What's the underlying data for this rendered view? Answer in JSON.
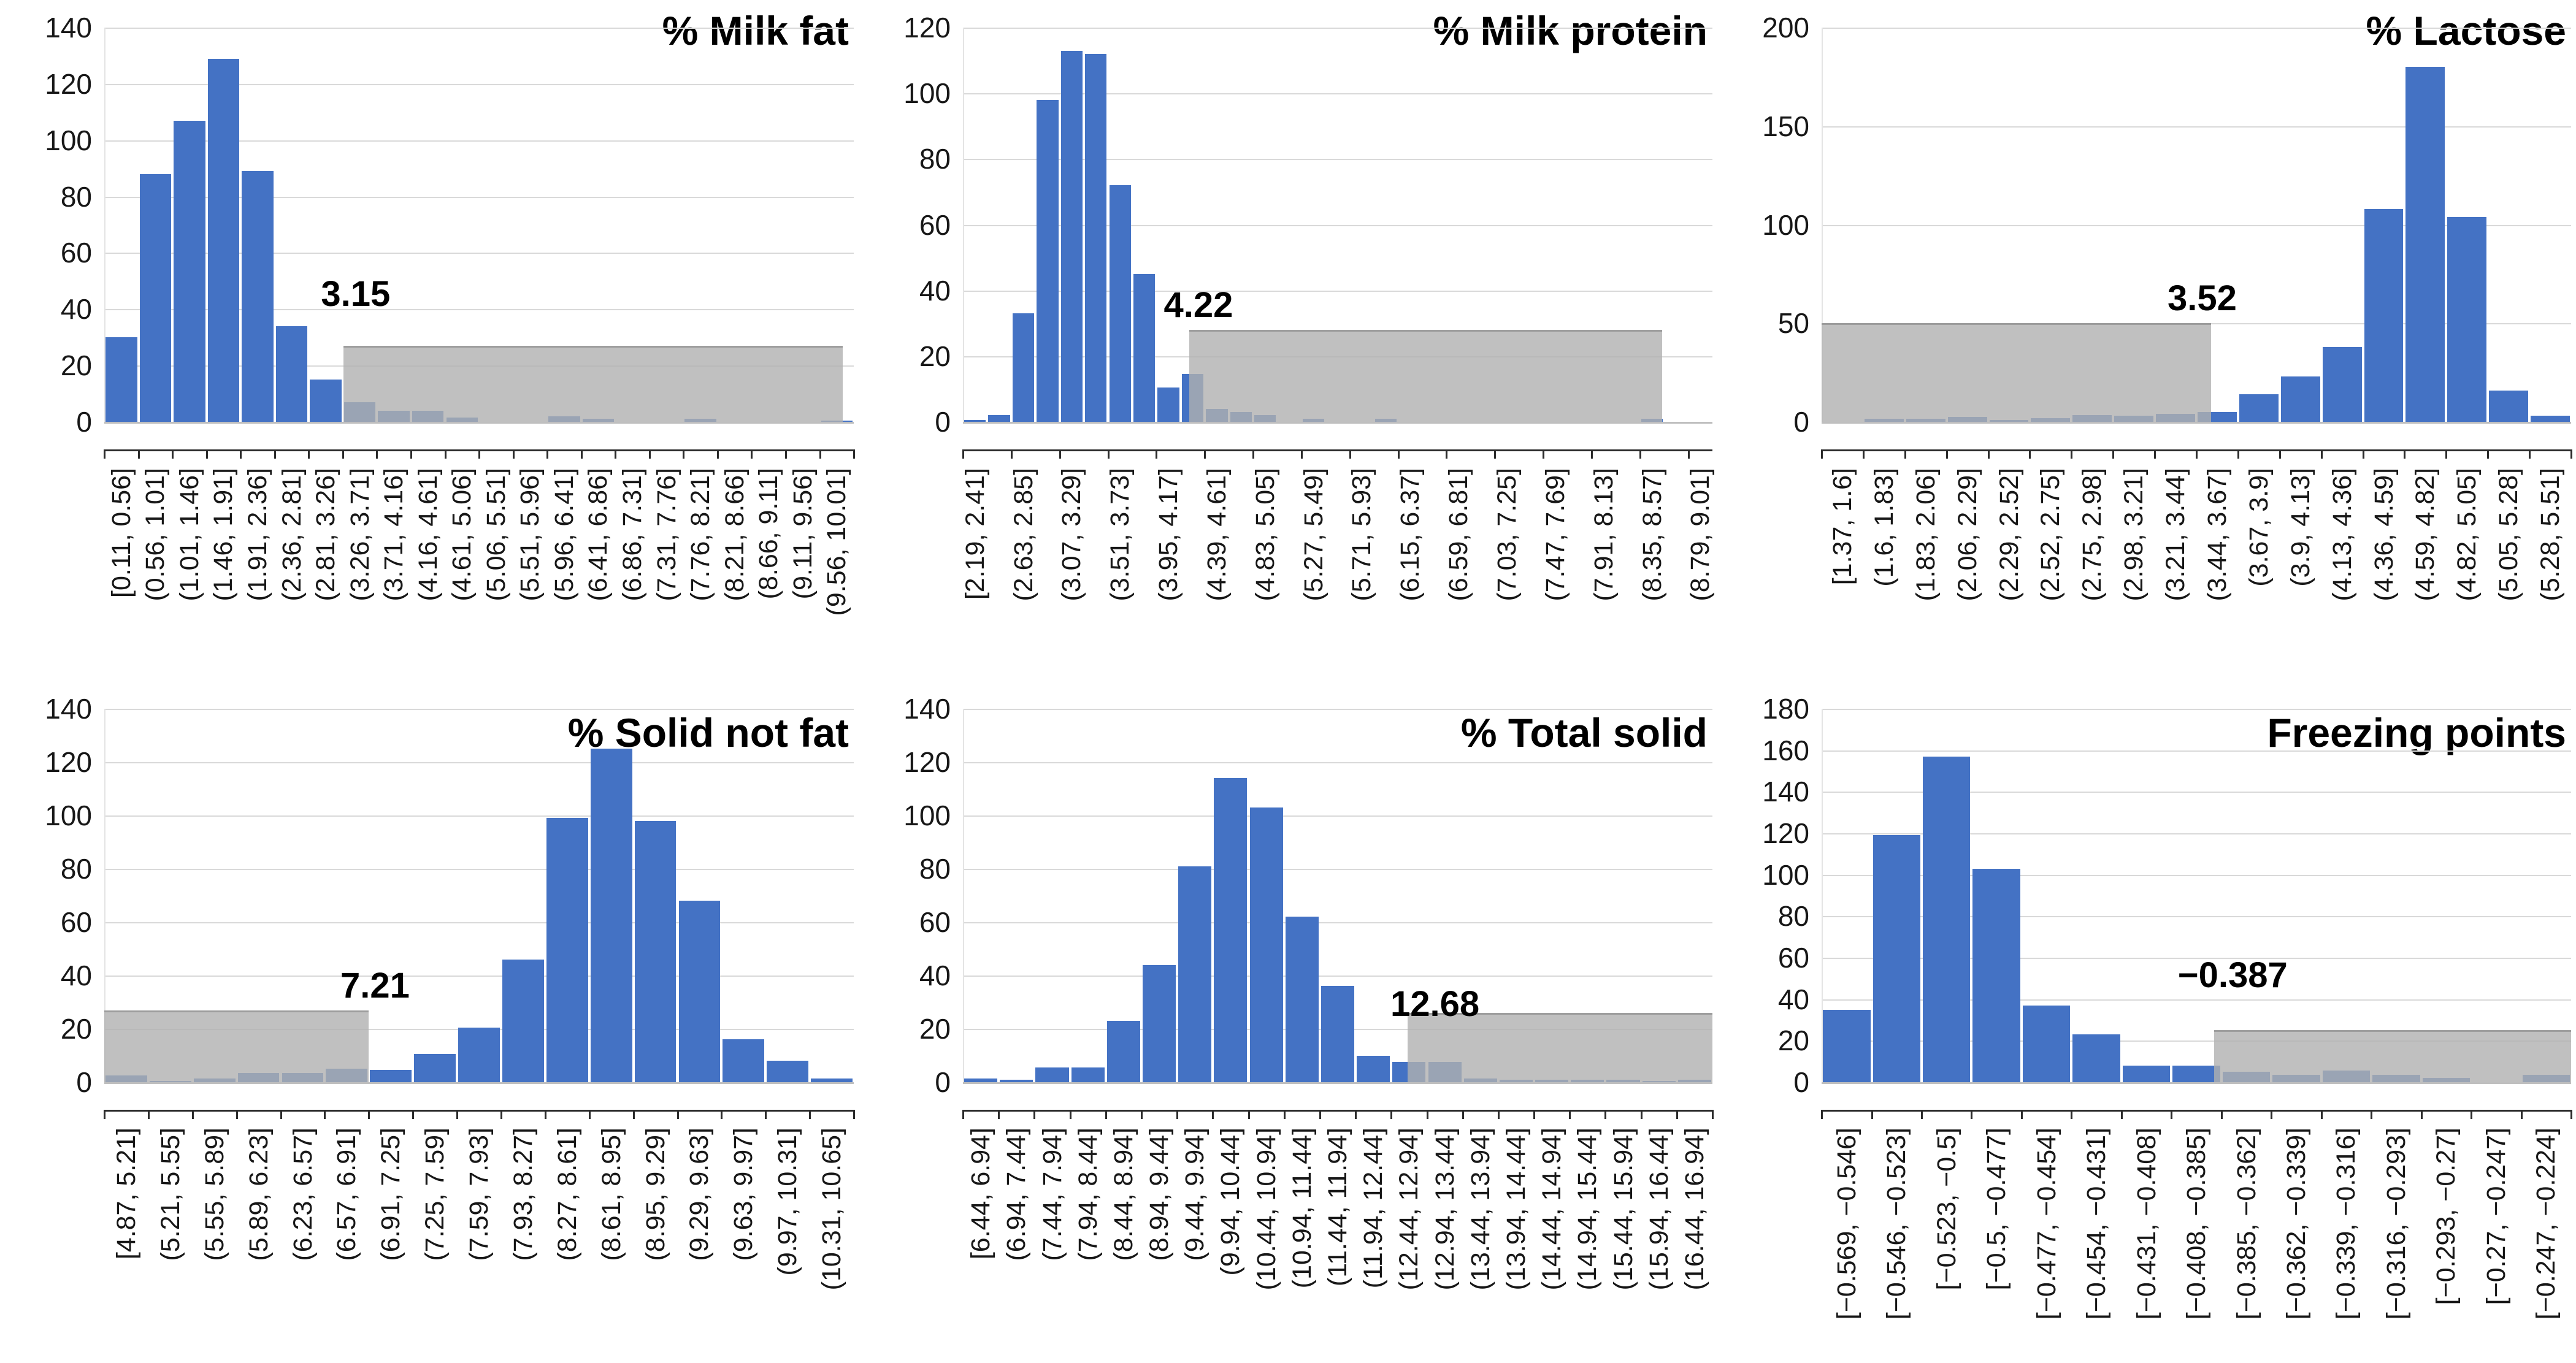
{
  "figure": {
    "description_titles": [
      "% Milk fat",
      "% Milk protein",
      "% Lactose",
      "% Solid not fat",
      "% Total solid",
      "Freezing points"
    ]
  },
  "colors": {
    "bar": "#4472c4",
    "shade": "rgba(176,176,176,0.80)",
    "gridline": "#d9d9d9",
    "axis_line": "#bfbfbf",
    "ruler": "#2b2b2b",
    "tick_text": "#171717",
    "title_text": "#000000"
  },
  "chart_data": [
    {
      "id": "milk-fat",
      "type": "bar",
      "title": "% Milk fat",
      "ylim": [
        0,
        140
      ],
      "yticks": [
        0,
        20,
        40,
        60,
        80,
        100,
        120,
        140
      ],
      "n_bins": 22,
      "tick_every": 1,
      "categories": [
        "[0.11, 0.56]",
        "(0.56, 1.01]",
        "(1.01, 1.46]",
        "(1.46, 1.91]",
        "(1.91, 2.36]",
        "(2.36, 2.81]",
        "(2.81, 3.26]",
        "(3.26, 3.71]",
        "(3.71, 4.16]",
        "(4.16, 4.61]",
        "(4.61, 5.06]",
        "(5.06, 5.51]",
        "(5.51, 5.96]",
        "(5.96, 6.41]",
        "(6.41, 6.86]",
        "(6.86, 7.31]",
        "(7.31, 7.76]",
        "(7.76, 8.21]",
        "(8.21, 8.66]",
        "(8.66, 9.11]",
        "(9.11, 9.56]",
        "(9.56, 10.01]"
      ],
      "label_bins": [
        0,
        1,
        2,
        3,
        4,
        5,
        6,
        7,
        8,
        9,
        10,
        11,
        12,
        13,
        14,
        15,
        16,
        17,
        18,
        19,
        20,
        21
      ],
      "values": [
        30,
        88,
        107,
        129,
        89,
        34,
        15,
        7,
        4,
        4,
        1.5,
        0,
        0,
        2,
        1,
        0,
        0,
        1,
        0,
        0,
        0,
        0.5
      ],
      "shade": {
        "from": 0.319,
        "to": 0.985,
        "height": 27,
        "label": "3.15",
        "threshold": 3.15,
        "label_dx": 20,
        "label_gap": 50
      }
    },
    {
      "id": "milk-protein",
      "type": "bar",
      "title": "% Milk protein",
      "ylim": [
        0,
        120
      ],
      "yticks": [
        0,
        20,
        40,
        60,
        80,
        100,
        120
      ],
      "n_bins": 31,
      "tick_every": 2,
      "categories": [
        "[2.19, 2.41]",
        "(2.63, 2.85]",
        "(3.07, 3.29]",
        "(3.51, 3.73]",
        "(3.95, 4.17]",
        "(4.39, 4.61]",
        "(4.83, 5.05]",
        "(5.27, 5.49]",
        "(5.71, 5.93]",
        "(6.15, 6.37]",
        "(6.59, 6.81]",
        "(7.03, 7.25]",
        "(7.47, 7.69]",
        "(7.91, 8.13]",
        "(8.35, 8.57]",
        "(8.79, 9.01]"
      ],
      "label_bins": [
        0,
        2,
        4,
        6,
        8,
        10,
        12,
        14,
        16,
        18,
        20,
        22,
        24,
        26,
        28,
        30
      ],
      "values": [
        0.5,
        2,
        33,
        98,
        113,
        112,
        72,
        45,
        10.5,
        14.5,
        4,
        3,
        2,
        0,
        1,
        0,
        0,
        1,
        0,
        0,
        0,
        0,
        0,
        0,
        0,
        0,
        0,
        0,
        1,
        0,
        0
      ],
      "shade": {
        "from": 0.302,
        "to": 0.933,
        "height": 28,
        "label": "4.22",
        "threshold": 4.22,
        "label_dx": 15,
        "label_gap": 6
      }
    },
    {
      "id": "lactose",
      "type": "bar",
      "title": "% Lactose",
      "ylim": [
        0,
        200
      ],
      "yticks": [
        0,
        50,
        100,
        150,
        200
      ],
      "n_bins": 18,
      "tick_every": 1,
      "categories": [
        "[1.37, 1.6]",
        "(1.6, 1.83]",
        "(1.83, 2.06]",
        "(2.06, 2.29]",
        "(2.29, 2.52]",
        "(2.52, 2.75]",
        "(2.75, 2.98]",
        "(2.98, 3.21]",
        "(3.21, 3.44]",
        "(3.44, 3.67]",
        "(3.67, 3.9]",
        "(3.9, 4.13]",
        "(4.13, 4.36]",
        "(4.36, 4.59]",
        "(4.59, 4.82]",
        "(4.82, 5.05]",
        "(5.05, 5.28]",
        "(5.28, 5.51]"
      ],
      "label_bins": [
        0,
        1,
        2,
        3,
        4,
        5,
        6,
        7,
        8,
        9,
        10,
        11,
        12,
        13,
        14,
        15,
        16,
        17
      ],
      "values": [
        0,
        1.5,
        1.5,
        2.5,
        1,
        2,
        3.5,
        3,
        4,
        5,
        14,
        23,
        38,
        108,
        180,
        104,
        16,
        3
      ],
      "shade": {
        "from": 0,
        "to": 0.52,
        "height": 50,
        "label": "3.52",
        "threshold": 3.52,
        "label_dx": -15,
        "label_gap": 6
      }
    },
    {
      "id": "solid-not-fat",
      "type": "bar",
      "title": "% Solid not fat",
      "ylim": [
        0,
        140
      ],
      "yticks": [
        0,
        20,
        40,
        60,
        80,
        100,
        120,
        140
      ],
      "n_bins": 17,
      "tick_every": 1,
      "categories": [
        "[4.87, 5.21]",
        "(5.21, 5.55]",
        "(5.55, 5.89]",
        "(5.89, 6.23]",
        "(6.23, 6.57]",
        "(6.57, 6.91]",
        "(6.91, 7.25]",
        "(7.25, 7.59]",
        "(7.59, 7.93]",
        "(7.93, 8.27]",
        "(8.27, 8.61]",
        "(8.61, 8.95]",
        "(8.95, 9.29]",
        "(9.29, 9.63]",
        "(9.63, 9.97]",
        "(9.97, 10.31]",
        "(10.31, 10.65]"
      ],
      "label_bins": [
        0,
        1,
        2,
        3,
        4,
        5,
        6,
        7,
        8,
        9,
        10,
        11,
        12,
        13,
        14,
        15,
        16
      ],
      "values": [
        2.5,
        0.5,
        1.5,
        3.5,
        3.5,
        5,
        4.5,
        10.5,
        20.5,
        46,
        99,
        125,
        98,
        68,
        16,
        8,
        1.5
      ],
      "shade": {
        "from": 0,
        "to": 0.353,
        "height": 27,
        "label": "7.21",
        "threshold": 7.21,
        "label_dx": 10,
        "label_gap": 6
      }
    },
    {
      "id": "total-solid",
      "type": "bar",
      "title": "% Total solid",
      "ylim": [
        0,
        140
      ],
      "yticks": [
        0,
        20,
        40,
        60,
        80,
        100,
        120,
        140
      ],
      "n_bins": 21,
      "tick_every": 1,
      "categories": [
        "[6.44, 6.94]",
        "(6.94, 7.44]",
        "(7.44, 7.94]",
        "(7.94, 8.44]",
        "(8.44, 8.94]",
        "(8.94, 9.44]",
        "(9.44, 9.94]",
        "(9.94, 10.44]",
        "(10.44, 10.94]",
        "(10.94, 11.44]",
        "(11.44, 11.94]",
        "(11.94, 12.44]",
        "(12.44, 12.94]",
        "(12.94, 13.44]",
        "(13.44, 13.94]",
        "(13.94, 14.44]",
        "(14.44, 14.94]",
        "(14.94, 15.44]",
        "(15.44, 15.94]",
        "(15.94, 16.44]",
        "(16.44, 16.94]"
      ],
      "label_bins": [
        0,
        1,
        2,
        3,
        4,
        5,
        6,
        7,
        8,
        9,
        10,
        11,
        12,
        13,
        14,
        15,
        16,
        17,
        18,
        19,
        20
      ],
      "values": [
        1.5,
        1,
        5.5,
        5.5,
        23,
        44,
        81,
        114,
        103,
        62,
        36,
        10,
        7.5,
        7.5,
        1.5,
        1,
        1,
        1,
        1,
        0.5,
        1
      ],
      "shade": {
        "from": 0.593,
        "to": 1,
        "height": 26,
        "label": "12.68",
        "threshold": 12.68,
        "label_dx": 45,
        "label_gap": -20
      }
    },
    {
      "id": "freezing-points",
      "type": "bar",
      "title": "Freezing points",
      "ylim": [
        0,
        180
      ],
      "yticks": [
        0,
        20,
        40,
        60,
        80,
        100,
        120,
        140,
        160,
        180
      ],
      "n_bins": 15,
      "tick_every": 1,
      "categories": [
        "[−0.569, −0.546]",
        "[−0.546, −0.523]",
        "[−0.523, −0.5]",
        "[−0.5, −0.477]",
        "[−0.477, −0.454]",
        "[−0.454, −0.431]",
        "[−0.431, −0.408]",
        "[−0.408, −0.385]",
        "[−0.385, −0.362]",
        "[−0.362, −0.339]",
        "[−0.339, −0.316]",
        "[−0.316, −0.293]",
        "[−0.293, −0.27]",
        "[−0.27, −0.247]",
        "[−0.247, −0.224]"
      ],
      "label_bins": [
        0,
        1,
        2,
        3,
        4,
        5,
        6,
        7,
        8,
        9,
        10,
        11,
        12,
        13,
        14
      ],
      "values": [
        35,
        119,
        157,
        103,
        37,
        23,
        8,
        8,
        5,
        3.5,
        5.5,
        3.5,
        2,
        0,
        3.5
      ],
      "shade": {
        "from": 0.524,
        "to": 1,
        "height": 25,
        "label": "−0.387",
        "threshold": -0.387,
        "label_dx": 30,
        "label_gap": 55
      }
    }
  ]
}
